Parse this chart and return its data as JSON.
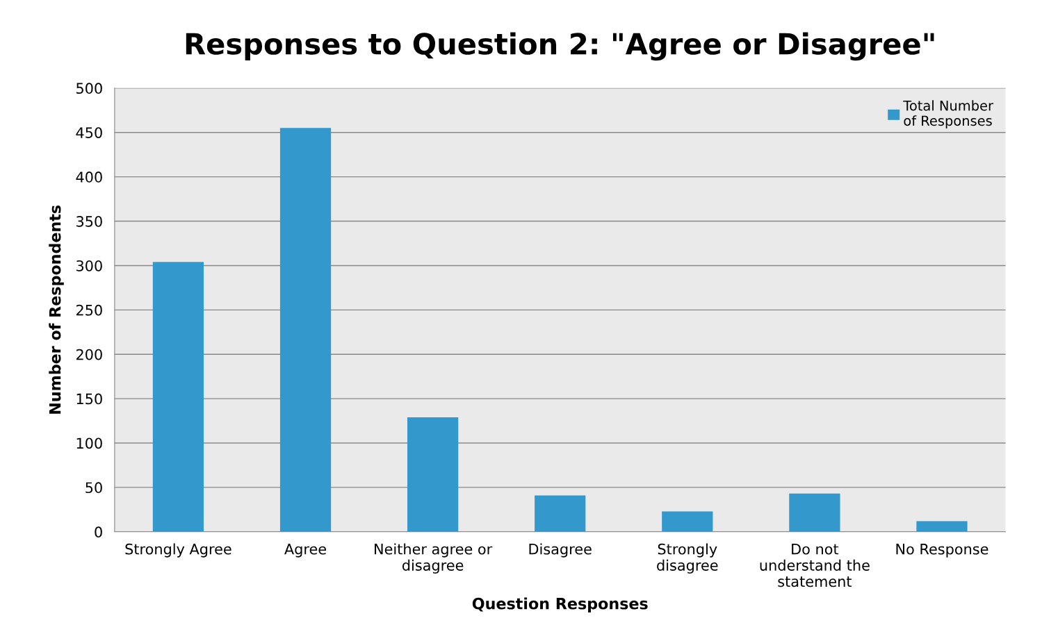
{
  "chart_data": {
    "type": "bar",
    "title": "Responses to Question 2: \"Agree or Disagree\"",
    "xlabel": "Question Responses",
    "ylabel": "Number of Respondents",
    "categories": [
      "Strongly Agree",
      "Agree",
      "Neither agree or\ndisagree",
      "Disagree",
      "Strongly\ndisagree",
      "Do not\nunderstand the\nstatement",
      "No Response"
    ],
    "series": [
      {
        "name": "Total Number\nof Responses",
        "color": "#3399cc",
        "values": [
          304,
          455,
          129,
          41,
          23,
          43,
          12
        ]
      }
    ],
    "ylim": [
      0,
      500
    ],
    "yticks": [
      0,
      50,
      100,
      150,
      200,
      250,
      300,
      350,
      400,
      450,
      500
    ],
    "grid": "y",
    "legend": "top right"
  }
}
